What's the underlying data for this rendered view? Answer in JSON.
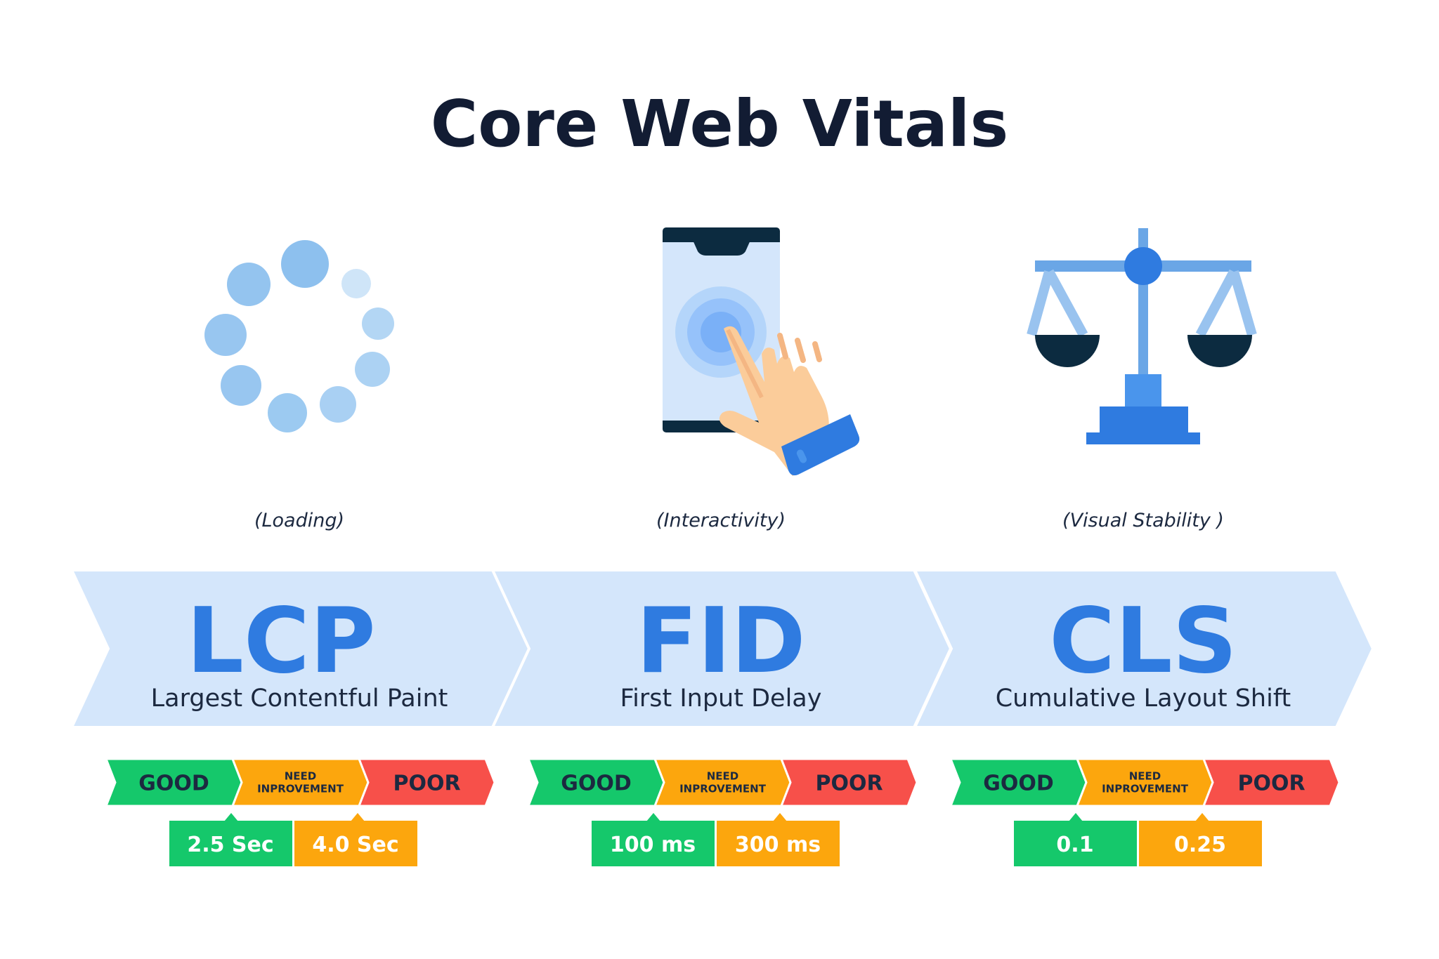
{
  "title": "Core Web Vitals",
  "colors": {
    "band": "#d4e6fb",
    "accent": "#2f7be0",
    "good": "#15c86b",
    "need": "#fca60d",
    "poor": "#f7504a",
    "dark": "#0c2b40"
  },
  "metrics": [
    {
      "icon": "loading-spinner-icon",
      "category": "(Loading)",
      "abbr": "LCP",
      "name": "Largest Contentful Paint",
      "ratings": {
        "good": "GOOD",
        "need_1": "NEED",
        "need_2": "INPROVEMENT",
        "poor": "POOR"
      },
      "thresholds": [
        "2.5 Sec",
        "4.0 Sec"
      ]
    },
    {
      "icon": "phone-tap-icon",
      "category": "(Interactivity)",
      "abbr": "FID",
      "name": "First Input Delay",
      "ratings": {
        "good": "GOOD",
        "need_1": "NEED",
        "need_2": "INPROVEMENT",
        "poor": "POOR"
      },
      "thresholds": [
        "100 ms",
        "300 ms"
      ]
    },
    {
      "icon": "balance-scale-icon",
      "category": "(Visual Stability )",
      "abbr": "CLS",
      "name": "Cumulative Layout Shift",
      "ratings": {
        "good": "GOOD",
        "need_1": "NEED",
        "need_2": "INPROVEMENT",
        "poor": "POOR"
      },
      "thresholds": [
        "0.1",
        "0.25"
      ]
    }
  ]
}
